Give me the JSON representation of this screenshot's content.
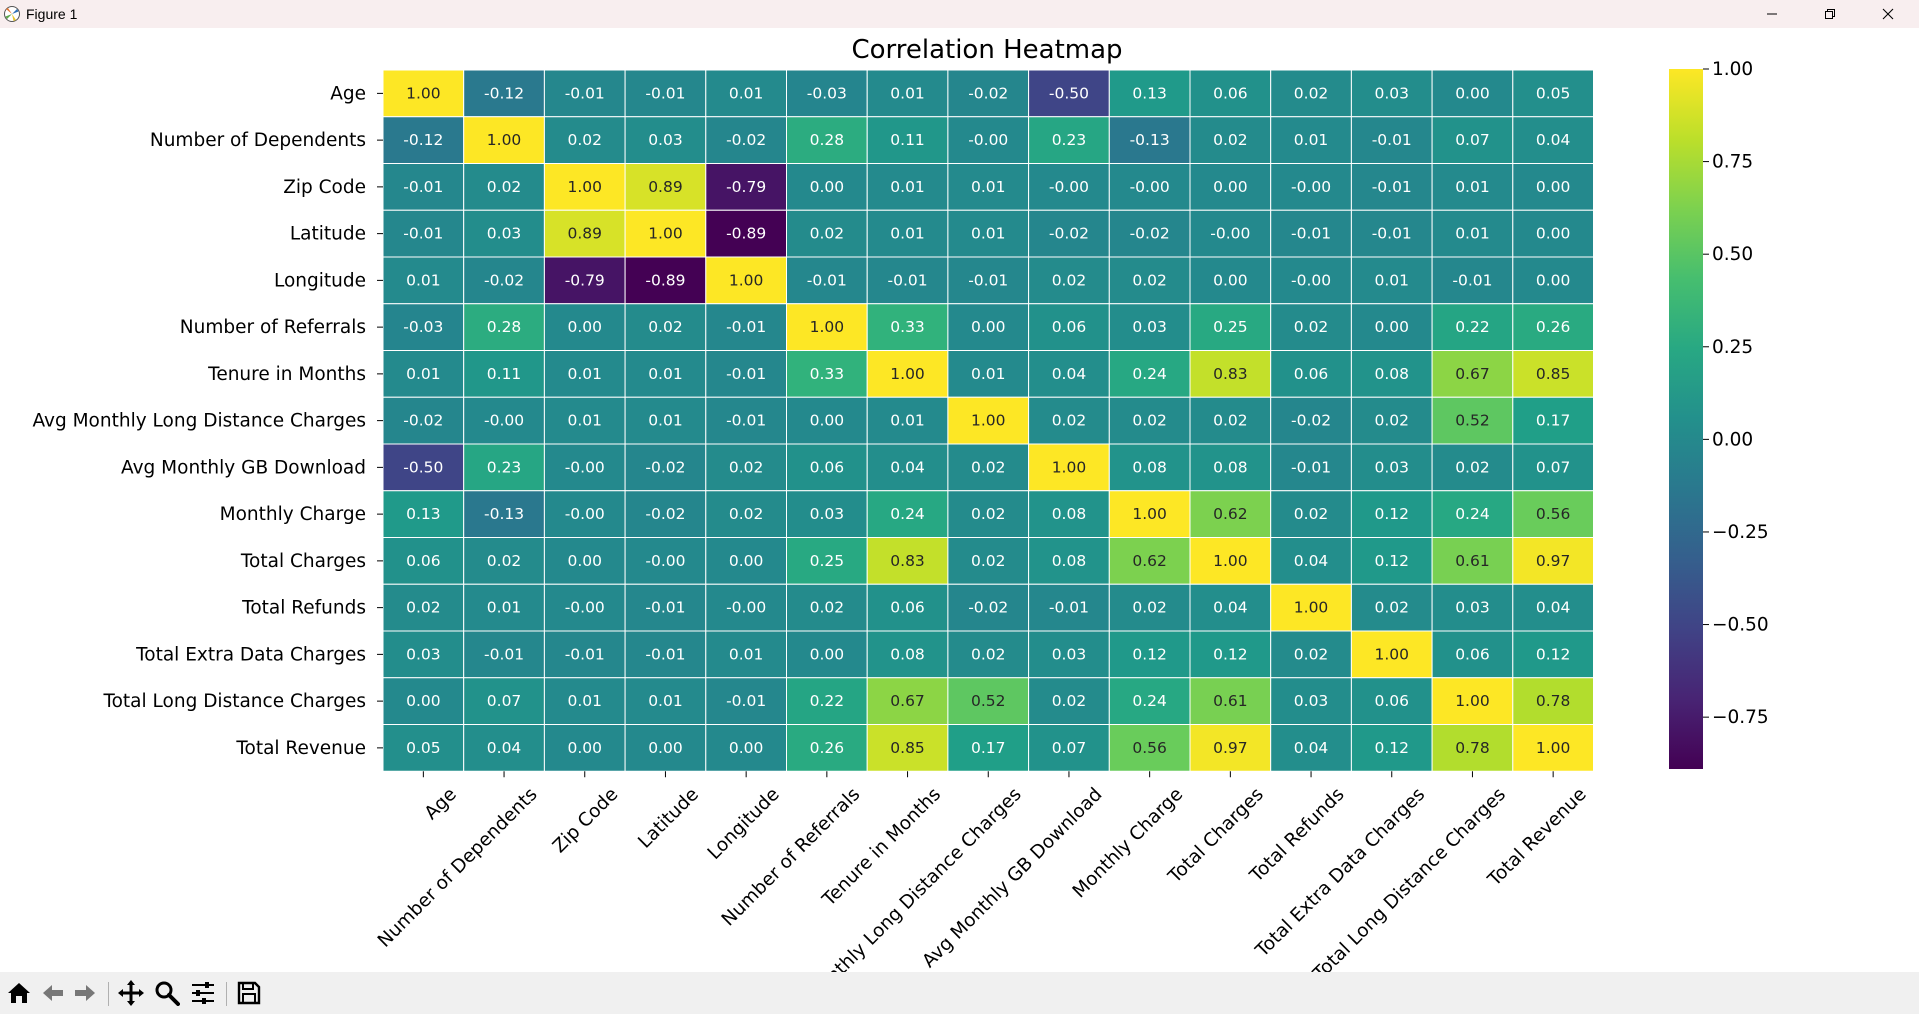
{
  "window": {
    "title": "Figure 1",
    "app_icon": "matplotlib-icon",
    "controls": [
      "minimize-icon",
      "maximize-icon",
      "close-icon"
    ]
  },
  "toolbar": {
    "buttons": [
      {
        "name": "home-icon",
        "action": "Home"
      },
      {
        "name": "back-arrow-icon",
        "action": "Back"
      },
      {
        "name": "forward-arrow-icon",
        "action": "Forward"
      },
      {
        "name": "pan-icon",
        "action": "Pan"
      },
      {
        "name": "zoom-icon",
        "action": "Zoom"
      },
      {
        "name": "configure-subplots-icon",
        "action": "Subplots"
      },
      {
        "name": "save-icon",
        "action": "Save"
      }
    ]
  },
  "chart_data": {
    "type": "heatmap",
    "title": "Correlation Heatmap",
    "colormap": "viridis",
    "value_format": "0.00",
    "labels": [
      "Age",
      "Number of Dependents",
      "Zip Code",
      "Latitude",
      "Longitude",
      "Number of Referrals",
      "Tenure in Months",
      "Avg Monthly Long Distance Charges",
      "Avg Monthly GB Download",
      "Monthly Charge",
      "Total Charges",
      "Total Refunds",
      "Total Extra Data Charges",
      "Total Long Distance Charges",
      "Total Revenue"
    ],
    "x_tick_labels_visible": [
      "Age",
      "Number of Dependents",
      "Zip Code",
      "Latitude",
      "Longitude",
      "Number of Referrals",
      "Tenure in Months",
      "onthly Long Distance Charges",
      "Avg Monthly GB Download",
      "Monthly Charge",
      "Total Charges",
      "Total Refunds",
      "Total Extra Data Charges",
      "Total Long Distance Charges",
      "Total Revenue"
    ],
    "matrix": [
      [
        1.0,
        -0.12,
        -0.01,
        -0.01,
        0.01,
        -0.03,
        0.01,
        -0.02,
        -0.5,
        0.13,
        0.06,
        0.02,
        0.03,
        0.0,
        0.05
      ],
      [
        -0.12,
        1.0,
        0.02,
        0.03,
        -0.02,
        0.28,
        0.11,
        -0.0,
        0.23,
        -0.13,
        0.02,
        0.01,
        -0.01,
        0.07,
        0.04
      ],
      [
        -0.01,
        0.02,
        1.0,
        0.89,
        -0.79,
        0.0,
        0.01,
        0.01,
        -0.0,
        -0.0,
        0.0,
        -0.0,
        -0.01,
        0.01,
        0.0
      ],
      [
        -0.01,
        0.03,
        0.89,
        1.0,
        -0.89,
        0.02,
        0.01,
        0.01,
        -0.02,
        -0.02,
        -0.0,
        -0.01,
        -0.01,
        0.01,
        0.0
      ],
      [
        0.01,
        -0.02,
        -0.79,
        -0.89,
        1.0,
        -0.01,
        -0.01,
        -0.01,
        0.02,
        0.02,
        0.0,
        -0.0,
        0.01,
        -0.01,
        0.0
      ],
      [
        -0.03,
        0.28,
        0.0,
        0.02,
        -0.01,
        1.0,
        0.33,
        0.0,
        0.06,
        0.03,
        0.25,
        0.02,
        0.0,
        0.22,
        0.26
      ],
      [
        0.01,
        0.11,
        0.01,
        0.01,
        -0.01,
        0.33,
        1.0,
        0.01,
        0.04,
        0.24,
        0.83,
        0.06,
        0.08,
        0.67,
        0.85
      ],
      [
        -0.02,
        -0.0,
        0.01,
        0.01,
        -0.01,
        0.0,
        0.01,
        1.0,
        0.02,
        0.02,
        0.02,
        -0.02,
        0.02,
        0.52,
        0.17
      ],
      [
        -0.5,
        0.23,
        -0.0,
        -0.02,
        0.02,
        0.06,
        0.04,
        0.02,
        1.0,
        0.08,
        0.08,
        -0.01,
        0.03,
        0.02,
        0.07
      ],
      [
        0.13,
        -0.13,
        -0.0,
        -0.02,
        0.02,
        0.03,
        0.24,
        0.02,
        0.08,
        1.0,
        0.62,
        0.02,
        0.12,
        0.24,
        0.56
      ],
      [
        0.06,
        0.02,
        0.0,
        -0.0,
        0.0,
        0.25,
        0.83,
        0.02,
        0.08,
        0.62,
        1.0,
        0.04,
        0.12,
        0.61,
        0.97
      ],
      [
        0.02,
        0.01,
        -0.0,
        -0.01,
        -0.0,
        0.02,
        0.06,
        -0.02,
        -0.01,
        0.02,
        0.04,
        1.0,
        0.02,
        0.03,
        0.04
      ],
      [
        0.03,
        -0.01,
        -0.01,
        -0.01,
        0.01,
        0.0,
        0.08,
        0.02,
        0.03,
        0.12,
        0.12,
        0.02,
        1.0,
        0.06,
        0.12
      ],
      [
        0.0,
        0.07,
        0.01,
        0.01,
        -0.01,
        0.22,
        0.67,
        0.52,
        0.02,
        0.24,
        0.61,
        0.03,
        0.06,
        1.0,
        0.78
      ],
      [
        0.05,
        0.04,
        0.0,
        0.0,
        0.0,
        0.26,
        0.85,
        0.17,
        0.07,
        0.56,
        0.97,
        0.04,
        0.12,
        0.78,
        1.0
      ]
    ],
    "colorbar": {
      "vmin": -0.89,
      "vmax": 1.0,
      "ticks": [
        1.0,
        0.75,
        0.5,
        0.25,
        0.0,
        -0.25,
        -0.5,
        -0.75
      ],
      "tick_labels": [
        "1.00",
        "0.75",
        "0.50",
        "0.25",
        "0.00",
        "−0.25",
        "−0.50",
        "−0.75"
      ]
    }
  }
}
